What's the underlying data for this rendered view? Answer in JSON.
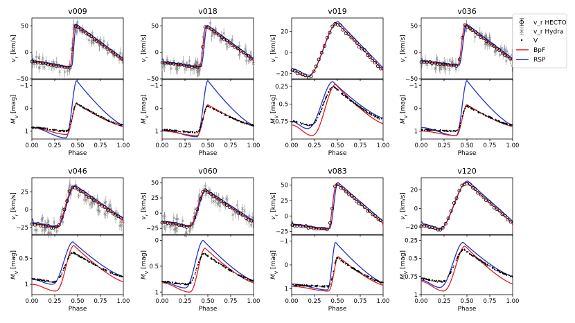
{
  "figure": {
    "legend": {
      "position": "top-right",
      "entries": [
        {
          "key": "hecto",
          "label": "v_r HECTO",
          "marker": "circle-errorbar",
          "color": "#000000"
        },
        {
          "key": "hydra",
          "label": "v_r Hydra",
          "marker": "cross-errorbar",
          "color": "#7f7f7f"
        },
        {
          "key": "v",
          "label": "V",
          "marker": "dot",
          "color": "#000000"
        },
        {
          "key": "bpf",
          "label": "BpF",
          "marker": "line",
          "color": "#e41a1c"
        },
        {
          "key": "rsp",
          "label": "RSP",
          "marker": "line",
          "color": "#1f2fd0"
        }
      ]
    }
  },
  "chart_data": [
    {
      "type": "line",
      "title": "v009",
      "xlabel": "Phase",
      "xticks": [
        "0.00",
        "0.25",
        "0.50",
        "0.75",
        "1.00"
      ],
      "xlim": [
        0,
        1
      ],
      "vel": {
        "ylabel": "v_r [km/s]",
        "ylim": [
          -50,
          65
        ],
        "yticks": [
          50,
          0,
          -50
        ],
        "hydra": true,
        "rv": {
          "min_phase": 0.42,
          "min": -28,
          "peak_phase": 0.47,
          "peak": 52,
          "end": -15,
          "start": -18
        },
        "lag": 0.015
      },
      "mag": {
        "ylabel": "M_V [mag]",
        "ylim": [
          1.35,
          -1.25
        ],
        "yticks": [
          -1,
          0,
          1
        ],
        "v": {
          "base": 0.85,
          "dip": 1.0,
          "dip_phase": 0.38,
          "peak": -0.2,
          "peak_phase": 0.49,
          "end": 0.75
        },
        "bpf": {
          "base": 0.85,
          "dip": 1.15,
          "dip_phase": 0.38,
          "peak": -0.2,
          "peak_phase": 0.49,
          "end": 0.8
        },
        "rsp": {
          "base": 0.85,
          "dip": 1.3,
          "dip_phase": 0.37,
          "peak": -1.2,
          "peak_phase": 0.49,
          "end": 0.75
        }
      }
    },
    {
      "type": "line",
      "title": "v018",
      "xlabel": "Phase",
      "xticks": [
        "0.00",
        "0.25",
        "0.50",
        "0.75",
        "1.00"
      ],
      "xlim": [
        0,
        1
      ],
      "vel": {
        "ylabel": "v_r [km/s]",
        "ylim": [
          -50,
          65
        ],
        "yticks": [
          50,
          0,
          -50
        ],
        "hydra": true,
        "rv": {
          "min_phase": 0.41,
          "min": -28,
          "peak_phase": 0.48,
          "peak": 50,
          "end": -15,
          "start": -20
        },
        "lag": 0.015
      },
      "mag": {
        "ylabel": "M_V [mag]",
        "ylim": [
          1.35,
          -1.25
        ],
        "yticks": [
          -1,
          0,
          1
        ],
        "v": {
          "base": 0.95,
          "dip": 1.05,
          "dip_phase": 0.38,
          "peak": -0.1,
          "peak_phase": 0.5,
          "end": 0.75
        },
        "bpf": {
          "base": 1.0,
          "dip": 1.2,
          "dip_phase": 0.38,
          "peak": -0.15,
          "peak_phase": 0.5,
          "end": 0.75
        },
        "rsp": {
          "base": 0.95,
          "dip": 1.25,
          "dip_phase": 0.38,
          "peak": -1.2,
          "peak_phase": 0.5,
          "end": 0.75
        }
      }
    },
    {
      "type": "line",
      "title": "v019",
      "xlabel": "Phase",
      "xticks": [
        "0.00",
        "0.25",
        "0.50",
        "0.75",
        "1.00"
      ],
      "xlim": [
        0,
        1
      ],
      "vel": {
        "ylabel": "v_r [km/s]",
        "ylim": [
          -25,
          33
        ],
        "yticks": [
          20,
          0,
          -20
        ],
        "hydra": false,
        "rv": {
          "min_phase": 0.18,
          "min": -23,
          "peak_phase": 0.5,
          "peak": 28,
          "end": -17,
          "start": -17
        },
        "lag": 0.01
      },
      "mag": {
        "ylabel": "M_V [mag]",
        "ylim": [
          1.0,
          0.15
        ],
        "yticks": [
          0.25,
          0.5,
          0.75
        ],
        "v": {
          "base": 0.75,
          "dip": 0.8,
          "dip_phase": 0.2,
          "peak": 0.25,
          "peak_phase": 0.46,
          "end": 0.72
        },
        "bpf": {
          "base": 0.8,
          "dip": 0.95,
          "dip_phase": 0.22,
          "peak": 0.22,
          "peak_phase": 0.48,
          "end": 0.78
        },
        "rsp": {
          "base": 0.75,
          "dip": 0.85,
          "dip_phase": 0.17,
          "peak": 0.18,
          "peak_phase": 0.45,
          "end": 0.7
        }
      }
    },
    {
      "type": "line",
      "title": "v036",
      "xlabel": "Phase",
      "xticks": [
        "0.00",
        "0.25",
        "0.50",
        "0.75",
        "1.00"
      ],
      "xlim": [
        0,
        1
      ],
      "vel": {
        "ylabel": "v_r [km/s]",
        "ylim": [
          -50,
          65
        ],
        "yticks": [
          50,
          0,
          -50
        ],
        "hydra": true,
        "rv": {
          "min_phase": 0.4,
          "min": -25,
          "peak_phase": 0.48,
          "peak": 52,
          "end": -15,
          "start": -18
        },
        "lag": 0.015
      },
      "mag": {
        "ylabel": "M_V [mag]",
        "ylim": [
          1.35,
          -1.25
        ],
        "yticks": [
          -1,
          0,
          1
        ],
        "v": {
          "base": 0.95,
          "dip": 1.0,
          "dip_phase": 0.38,
          "peak": -0.1,
          "peak_phase": 0.5,
          "end": 0.75
        },
        "bpf": {
          "base": 1.0,
          "dip": 1.2,
          "dip_phase": 0.38,
          "peak": -0.15,
          "peak_phase": 0.5,
          "end": 0.8
        },
        "rsp": {
          "base": 0.85,
          "dip": 1.2,
          "dip_phase": 0.38,
          "peak": -1.2,
          "peak_phase": 0.5,
          "end": 0.75
        }
      }
    },
    {
      "type": "line",
      "title": "v046",
      "xlabel": "Phase",
      "xticks": [
        "0.00",
        "0.25",
        "0.50",
        "0.75",
        "1.00"
      ],
      "xlim": [
        0,
        1
      ],
      "vel": {
        "ylabel": "v_r [km/s]",
        "ylim": [
          -35,
          45
        ],
        "yticks": [
          25,
          0,
          -25
        ],
        "hydra": true,
        "rv": {
          "min_phase": 0.27,
          "min": -25,
          "peak_phase": 0.46,
          "peak": 33,
          "end": -15,
          "start": -20
        },
        "lag": 0.012
      },
      "mag": {
        "ylabel": "M_V [mag]",
        "ylim": [
          1.2,
          0.05
        ],
        "yticks": [
          0.5,
          1.0
        ],
        "v": {
          "base": 0.9,
          "dip": 0.95,
          "dip_phase": 0.25,
          "peak": 0.38,
          "peak_phase": 0.45,
          "end": 0.85
        },
        "bpf": {
          "base": 1.0,
          "dip": 1.13,
          "dip_phase": 0.26,
          "peak": 0.25,
          "peak_phase": 0.46,
          "end": 0.95
        },
        "rsp": {
          "base": 0.9,
          "dip": 1.0,
          "dip_phase": 0.22,
          "peak": 0.18,
          "peak_phase": 0.45,
          "end": 0.85
        }
      }
    },
    {
      "type": "line",
      "title": "v060",
      "xlabel": "Phase",
      "xticks": [
        "0.00",
        "0.25",
        "0.50",
        "0.75",
        "1.00"
      ],
      "xlim": [
        0,
        1
      ],
      "vel": {
        "ylabel": "v_r [km/s]",
        "ylim": [
          -35,
          58
        ],
        "yticks": [
          50,
          25,
          0,
          -25
        ],
        "hydra": true,
        "rv": {
          "min_phase": 0.3,
          "min": -22,
          "peak_phase": 0.47,
          "peak": 37,
          "end": -15,
          "start": -15
        },
        "lag": 0.012
      },
      "mag": {
        "ylabel": "M_V [mag]",
        "ylim": [
          1.05,
          -0.1
        ],
        "yticks": [
          0.0,
          0.5,
          1.0
        ],
        "v": {
          "base": 0.8,
          "dip": 0.85,
          "dip_phase": 0.28,
          "peak": 0.25,
          "peak_phase": 0.46,
          "end": 0.78
        },
        "bpf": {
          "base": 0.82,
          "dip": 1.0,
          "dip_phase": 0.3,
          "peak": 0.15,
          "peak_phase": 0.47,
          "end": 0.82
        },
        "rsp": {
          "base": 0.8,
          "dip": 0.92,
          "dip_phase": 0.25,
          "peak": 0.0,
          "peak_phase": 0.45,
          "end": 0.78
        }
      }
    },
    {
      "type": "line",
      "title": "v083",
      "xlabel": "Phase",
      "xticks": [
        "0.00",
        "0.25",
        "0.50",
        "0.75",
        "1.00"
      ],
      "xlim": [
        0,
        1
      ],
      "vel": {
        "ylabel": "v_r [km/s]",
        "ylim": [
          -30,
          62
        ],
        "yticks": [
          50,
          25,
          0,
          -25
        ],
        "hydra": false,
        "rv": {
          "min_phase": 0.4,
          "min": -22,
          "peak_phase": 0.49,
          "peak": 53,
          "end": -12,
          "start": -15
        },
        "lag": 0.015
      },
      "mag": {
        "ylabel": "M_V [mag]",
        "ylim": [
          1.25,
          -1.25
        ],
        "yticks": [
          -1,
          0,
          1
        ],
        "v": {
          "base": 0.85,
          "dip": 0.9,
          "dip_phase": 0.4,
          "peak": -0.3,
          "peak_phase": 0.5,
          "end": 0.75
        },
        "bpf": {
          "base": 0.9,
          "dip": 1.1,
          "dip_phase": 0.4,
          "peak": -0.35,
          "peak_phase": 0.51,
          "end": 0.85
        },
        "rsp": {
          "base": 0.8,
          "dip": 1.05,
          "dip_phase": 0.39,
          "peak": -0.95,
          "peak_phase": 0.48,
          "end": 0.75
        }
      }
    },
    {
      "type": "line",
      "title": "v120",
      "xlabel": "Phase",
      "xticks": [
        "0.00",
        "0.25",
        "0.50",
        "0.75",
        "1.00"
      ],
      "xlim": [
        0,
        1
      ],
      "vel": {
        "ylabel": "v_r [km/s]",
        "ylim": [
          -28,
          33
        ],
        "yticks": [
          20,
          0,
          -20
        ],
        "hydra": false,
        "rv": {
          "min_phase": 0.2,
          "min": -23,
          "peak_phase": 0.5,
          "peak": 28,
          "end": -16,
          "start": -18
        },
        "lag": 0.01
      },
      "mag": {
        "ylabel": "M_V [mag]",
        "ylim": [
          1.0,
          0.18
        ],
        "yticks": [
          0.25,
          0.5,
          0.75,
          1.0
        ],
        "v": {
          "base": 0.78,
          "dip": 0.82,
          "dip_phase": 0.22,
          "peak": 0.38,
          "peak_phase": 0.47,
          "end": 0.75
        },
        "bpf": {
          "base": 0.82,
          "dip": 0.95,
          "dip_phase": 0.24,
          "peak": 0.33,
          "peak_phase": 0.48,
          "end": 0.85
        },
        "rsp": {
          "base": 0.8,
          "dip": 0.9,
          "dip_phase": 0.2,
          "peak": 0.28,
          "peak_phase": 0.46,
          "end": 0.75
        }
      }
    }
  ]
}
